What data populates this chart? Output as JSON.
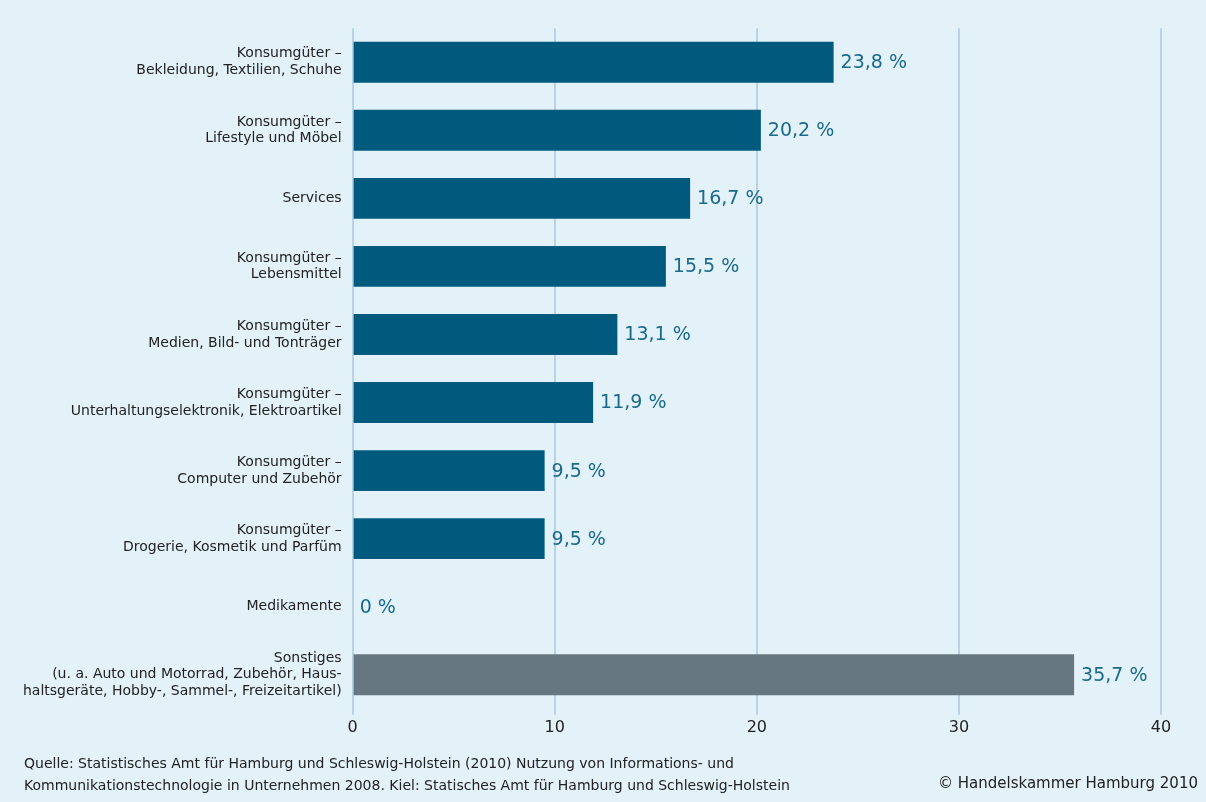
{
  "chart_data": {
    "type": "bar",
    "orientation": "horizontal",
    "categories": [
      "Konsumgüter –\nBekleidung, Textilien, Schuhe",
      "Konsumgüter –\nLifestyle und Möbel",
      "Services",
      "Konsumgüter –\nLebensmittel",
      "Konsumgüter –\nMedien, Bild- und Tonträger",
      "Konsumgüter –\nUnterhaltungselektronik, Elektroartikel",
      "Konsumgüter –\nComputer und Zubehör",
      "Konsumgüter –\nDrogerie, Kosmetik und Parfüm",
      "Medikamente",
      "Sonstiges\n(u. a. Auto und Motorrad, Zubehör, Haus-\nhaltsgeräte, Hobby-, Sammel-, Freizeitartikel)"
    ],
    "values": [
      23.8,
      20.2,
      16.7,
      15.5,
      13.1,
      11.9,
      9.5,
      9.5,
      0,
      35.7
    ],
    "colors": [
      "#005a7e",
      "#005a7e",
      "#005a7e",
      "#005a7e",
      "#005a7e",
      "#005a7e",
      "#005a7e",
      "#005a7e",
      "#005a7e",
      "#66777f"
    ],
    "value_labels": [
      "23,8 %",
      "20,2 %",
      "16,7 %",
      "15,5 %",
      "13,1 %",
      "11,9 %",
      "9,5 %",
      "9,5 %",
      "0 %",
      "35,7 %"
    ],
    "xlim": [
      0,
      40
    ],
    "xticks": [
      0,
      10,
      20,
      30,
      40
    ],
    "grid": "x",
    "legend": false,
    "annotations": [
      "Quelle: Statistisches Amt für Hamburg und Schleswig-Holstein (2010) Nutzung von Informations- und\nKommunikationstechnologie in Unternehmen 2008. Kiel: Statisches Amt für Hamburg und Schleswig-Holstein",
      "© Handelskammer Hamburg 2010"
    ]
  }
}
